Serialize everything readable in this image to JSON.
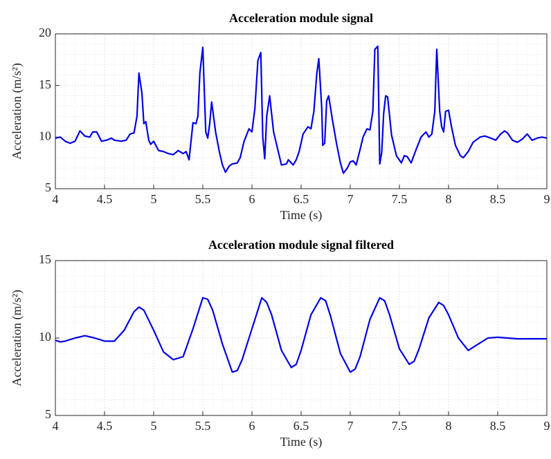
{
  "chart_data": [
    {
      "type": "line",
      "title": "Acceleration module signal",
      "xlabel": "Time (s)",
      "ylabel": "Acceleration (m/s²)",
      "x": [
        4.0,
        4.05,
        4.1,
        4.15,
        4.2,
        4.25,
        4.3,
        4.35,
        4.38,
        4.42,
        4.47,
        4.52,
        4.57,
        4.6,
        4.67,
        4.72,
        4.76,
        4.8,
        4.83,
        4.85,
        4.88,
        4.9,
        4.92,
        4.95,
        4.97,
        5.0,
        5.05,
        5.1,
        5.15,
        5.2,
        5.25,
        5.3,
        5.33,
        5.36,
        5.4,
        5.43,
        5.45,
        5.47,
        5.5,
        5.53,
        5.55,
        5.57,
        5.59,
        5.63,
        5.67,
        5.7,
        5.73,
        5.77,
        5.8,
        5.85,
        5.88,
        5.92,
        5.97,
        6.0,
        6.03,
        6.06,
        6.09,
        6.11,
        6.13,
        6.15,
        6.18,
        6.22,
        6.27,
        6.3,
        6.35,
        6.37,
        6.42,
        6.45,
        6.48,
        6.52,
        6.57,
        6.6,
        6.63,
        6.66,
        6.68,
        6.71,
        6.72,
        6.74,
        6.76,
        6.78,
        6.82,
        6.86,
        6.9,
        6.93,
        6.97,
        7.0,
        7.03,
        7.06,
        7.1,
        7.13,
        7.17,
        7.2,
        7.23,
        7.25,
        7.28,
        7.3,
        7.32,
        7.34,
        7.36,
        7.38,
        7.42,
        7.47,
        7.52,
        7.55,
        7.58,
        7.62,
        7.67,
        7.72,
        7.77,
        7.8,
        7.83,
        7.86,
        7.88,
        7.91,
        7.93,
        7.95,
        7.97,
        8.0,
        8.03,
        8.07,
        8.12,
        8.15,
        8.2,
        8.25,
        8.32,
        8.37,
        8.43,
        8.48,
        8.53,
        8.57,
        8.6,
        8.65,
        8.7,
        8.75,
        8.8,
        8.85,
        8.9,
        8.95,
        9.0
      ],
      "values": [
        9.9,
        10.0,
        9.6,
        9.4,
        9.6,
        10.6,
        10.1,
        10.0,
        10.5,
        10.5,
        9.6,
        9.7,
        9.9,
        9.7,
        9.6,
        9.7,
        10.3,
        10.4,
        12.0,
        16.2,
        14.3,
        11.3,
        11.5,
        9.7,
        9.3,
        9.6,
        8.7,
        8.6,
        8.4,
        8.3,
        8.7,
        8.4,
        8.6,
        7.8,
        11.4,
        11.3,
        12.0,
        16.2,
        18.7,
        10.5,
        9.9,
        11.3,
        13.4,
        10.5,
        8.5,
        7.3,
        6.6,
        7.2,
        7.4,
        7.5,
        8.0,
        9.6,
        10.8,
        10.5,
        12.8,
        17.4,
        18.2,
        10.0,
        7.9,
        12.0,
        14.0,
        10.5,
        8.5,
        7.3,
        7.4,
        7.8,
        7.3,
        7.8,
        8.6,
        10.3,
        11.0,
        10.8,
        12.5,
        16.2,
        17.6,
        12.8,
        9.2,
        9.4,
        13.5,
        14.0,
        11.6,
        9.4,
        7.5,
        6.5,
        7.0,
        7.6,
        7.7,
        7.3,
        8.8,
        10.0,
        10.8,
        10.7,
        12.5,
        18.5,
        18.8,
        7.4,
        8.5,
        12.3,
        14.0,
        13.9,
        10.2,
        8.2,
        7.5,
        8.2,
        8.1,
        7.5,
        8.8,
        10.0,
        10.5,
        10.0,
        10.3,
        12.5,
        18.5,
        12.5,
        11.0,
        10.5,
        12.5,
        12.6,
        11.0,
        9.2,
        8.2,
        8.0,
        8.6,
        9.5,
        10.0,
        10.1,
        9.9,
        9.7,
        10.3,
        10.6,
        10.4,
        9.7,
        9.5,
        9.8,
        10.3,
        9.7,
        9.9,
        10.0,
        9.9
      ],
      "color": "#0000e6",
      "xlim": [
        4,
        9
      ],
      "xticks": [
        4,
        4.5,
        5,
        5.5,
        6,
        6.5,
        7,
        7.5,
        8,
        8.5,
        9
      ],
      "ylim": [
        5,
        20
      ],
      "yticks": [
        5,
        10,
        15,
        20
      ],
      "grid": true
    },
    {
      "type": "line",
      "title": "Acceleration module signal filtered",
      "xlabel": "Time (s)",
      "ylabel": "Acceleration (m/s²)",
      "x": [
        4.0,
        4.05,
        4.1,
        4.2,
        4.3,
        4.4,
        4.5,
        4.6,
        4.7,
        4.8,
        4.85,
        4.9,
        5.0,
        5.1,
        5.2,
        5.3,
        5.4,
        5.5,
        5.55,
        5.6,
        5.7,
        5.8,
        5.85,
        5.9,
        6.0,
        6.1,
        6.15,
        6.2,
        6.3,
        6.4,
        6.45,
        6.5,
        6.6,
        6.7,
        6.75,
        6.8,
        6.9,
        7.0,
        7.05,
        7.1,
        7.2,
        7.3,
        7.35,
        7.4,
        7.5,
        7.6,
        7.65,
        7.7,
        7.8,
        7.9,
        7.95,
        8.0,
        8.1,
        8.2,
        8.3,
        8.4,
        8.5,
        8.6,
        8.7,
        8.8,
        9.0
      ],
      "values": [
        9.85,
        9.75,
        9.8,
        10.0,
        10.15,
        10.0,
        9.8,
        9.8,
        10.5,
        11.7,
        12.0,
        11.8,
        10.5,
        9.1,
        8.6,
        8.8,
        10.6,
        12.6,
        12.5,
        11.8,
        9.6,
        7.8,
        7.9,
        8.6,
        10.6,
        12.6,
        12.3,
        11.5,
        9.2,
        8.1,
        8.3,
        9.2,
        11.5,
        12.6,
        12.4,
        11.4,
        9.0,
        7.8,
        8.0,
        8.8,
        11.2,
        12.6,
        12.4,
        11.5,
        9.3,
        8.3,
        8.5,
        9.3,
        11.3,
        12.3,
        12.1,
        11.5,
        10.0,
        9.2,
        9.6,
        10.0,
        10.05,
        10.0,
        9.95,
        9.95,
        9.95
      ],
      "color": "#0000e6",
      "xlim": [
        4,
        9
      ],
      "xticks": [
        4,
        4.5,
        5,
        5.5,
        6,
        6.5,
        7,
        7.5,
        8,
        8.5,
        9
      ],
      "ylim": [
        5,
        15
      ],
      "yticks": [
        5,
        10,
        15
      ],
      "grid": true
    }
  ]
}
